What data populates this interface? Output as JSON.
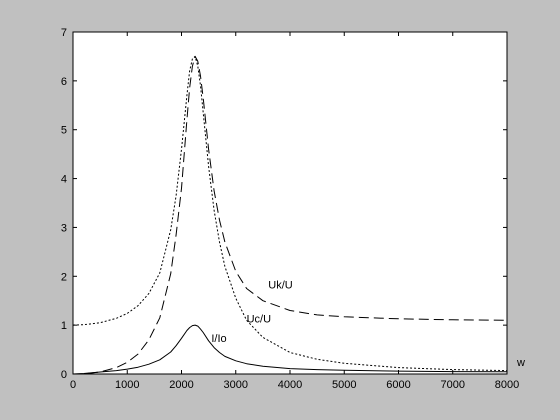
{
  "chart_data": {
    "type": "line",
    "xlabel": "w",
    "ylabel": "",
    "xlim": [
      0,
      8000
    ],
    "ylim": [
      0,
      7
    ],
    "xticks": [
      0,
      1000,
      2000,
      3000,
      4000,
      5000,
      6000,
      7000,
      8000
    ],
    "yticks": [
      0,
      1,
      2,
      3,
      4,
      5,
      6,
      7
    ],
    "grid": false,
    "colors": {
      "figure_bg": "#c0c0c0",
      "axes_bg": "#ffffff",
      "line": "#000000"
    },
    "series": [
      {
        "label": "I/Io",
        "style": "solid",
        "x": [
          0,
          200,
          500,
          800,
          1000,
          1200,
          1400,
          1600,
          1800,
          1900,
          2000,
          2100,
          2150,
          2200,
          2250,
          2300,
          2350,
          2400,
          2500,
          2600,
          2700,
          2800,
          3000,
          3200,
          3500,
          4000,
          4500,
          5000,
          6000,
          7000,
          8000
        ],
        "y": [
          0,
          0.01,
          0.04,
          0.07,
          0.1,
          0.14,
          0.2,
          0.29,
          0.45,
          0.58,
          0.73,
          0.89,
          0.95,
          0.99,
          1.0,
          0.98,
          0.92,
          0.85,
          0.68,
          0.54,
          0.44,
          0.36,
          0.27,
          0.21,
          0.16,
          0.11,
          0.09,
          0.075,
          0.06,
          0.05,
          0.045
        ]
      },
      {
        "label": "Uc/U",
        "style": "dotted",
        "x": [
          0,
          200,
          500,
          800,
          1000,
          1200,
          1400,
          1600,
          1800,
          1900,
          2000,
          2100,
          2150,
          2200,
          2250,
          2300,
          2350,
          2400,
          2500,
          2600,
          2700,
          2800,
          3000,
          3200,
          3500,
          4000,
          4500,
          5000,
          6000,
          7000,
          8000
        ],
        "y": [
          1.0,
          1.01,
          1.05,
          1.14,
          1.24,
          1.4,
          1.65,
          2.07,
          2.95,
          3.65,
          4.6,
          5.7,
          6.2,
          6.45,
          6.5,
          6.3,
          5.9,
          5.35,
          4.25,
          3.35,
          2.7,
          2.2,
          1.55,
          1.1,
          0.75,
          0.44,
          0.3,
          0.22,
          0.13,
          0.09,
          0.07
        ]
      },
      {
        "label": "Uk/U",
        "style": "dashed",
        "x": [
          0,
          200,
          500,
          800,
          1000,
          1200,
          1400,
          1600,
          1800,
          1900,
          2000,
          2100,
          2150,
          2200,
          2250,
          2300,
          2350,
          2400,
          2500,
          2600,
          2700,
          2800,
          3000,
          3200,
          3500,
          4000,
          4500,
          5000,
          6000,
          7000,
          8000
        ],
        "y": [
          0,
          0.005,
          0.04,
          0.13,
          0.24,
          0.41,
          0.7,
          1.15,
          2.05,
          2.85,
          3.8,
          5.2,
          5.85,
          6.3,
          6.5,
          6.4,
          6.1,
          5.65,
          4.6,
          3.75,
          3.15,
          2.7,
          2.1,
          1.75,
          1.5,
          1.3,
          1.21,
          1.17,
          1.13,
          1.11,
          1.1
        ]
      }
    ],
    "annotations": [
      {
        "text": "I/Io",
        "x": 2550,
        "y": 0.65
      },
      {
        "text": "Uc/U",
        "x": 3200,
        "y": 1.05
      },
      {
        "text": "Uk/U",
        "x": 3600,
        "y": 1.75
      }
    ]
  }
}
